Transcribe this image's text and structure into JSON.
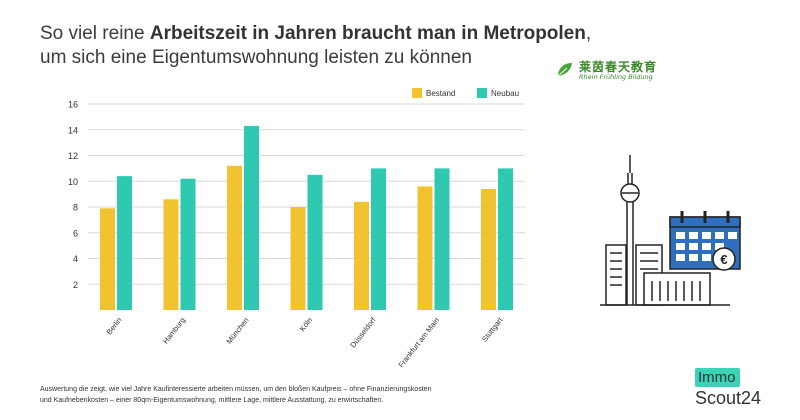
{
  "title": {
    "line1_prefix": "So viel reine ",
    "line1_bold": "Arbeitszeit in Jahren braucht man in Metropolen",
    "line1_suffix": ",",
    "line2": "um sich eine Eigentumswohnung leisten zu können"
  },
  "brand": {
    "chinese": "莱茵春天教育",
    "english": "Rhein Frühling Bildung"
  },
  "footnote": {
    "line1": "Auswertung die zeigt, wie viel Jahre Kaufinteressierte arbeiten müssen, um den bloßen Kaufpreis – ohne Finanzierungskosten",
    "line2": "und Kaufnebenkosten – einer 80qm-Eigentumswohnung, mittlere Lage, mittlere Ausstattung, zu erwirtschaften."
  },
  "logo": {
    "line1": "Immo",
    "line2": "Scout24"
  },
  "colors": {
    "bestand": "#f2c330",
    "neubau": "#2ec9b0",
    "grid": "#d9d9d9",
    "logo_accent": "#3ad3b5",
    "illustration_blue": "#2f6fc0"
  },
  "illustration": {
    "icons": [
      "tv-tower-icon",
      "calendar-icon",
      "euro-coin-icon",
      "buildings-icon"
    ]
  },
  "chart_data": {
    "type": "bar",
    "categories": [
      "Berlin",
      "Hamburg",
      "München",
      "Köln",
      "Düsseldorf",
      "Frankfurt am Main",
      "Stuttgart"
    ],
    "series": [
      {
        "name": "Bestand",
        "values": [
          7.9,
          8.6,
          11.2,
          8.0,
          8.4,
          9.6,
          9.4
        ]
      },
      {
        "name": "Neubau",
        "values": [
          10.4,
          10.2,
          14.3,
          10.5,
          11.0,
          11.0,
          11.0
        ]
      }
    ],
    "yticks": [
      2,
      4,
      6,
      8,
      10,
      12,
      14,
      16
    ],
    "ylim": [
      0,
      16
    ],
    "grid": true,
    "legend_position": "top-right"
  }
}
